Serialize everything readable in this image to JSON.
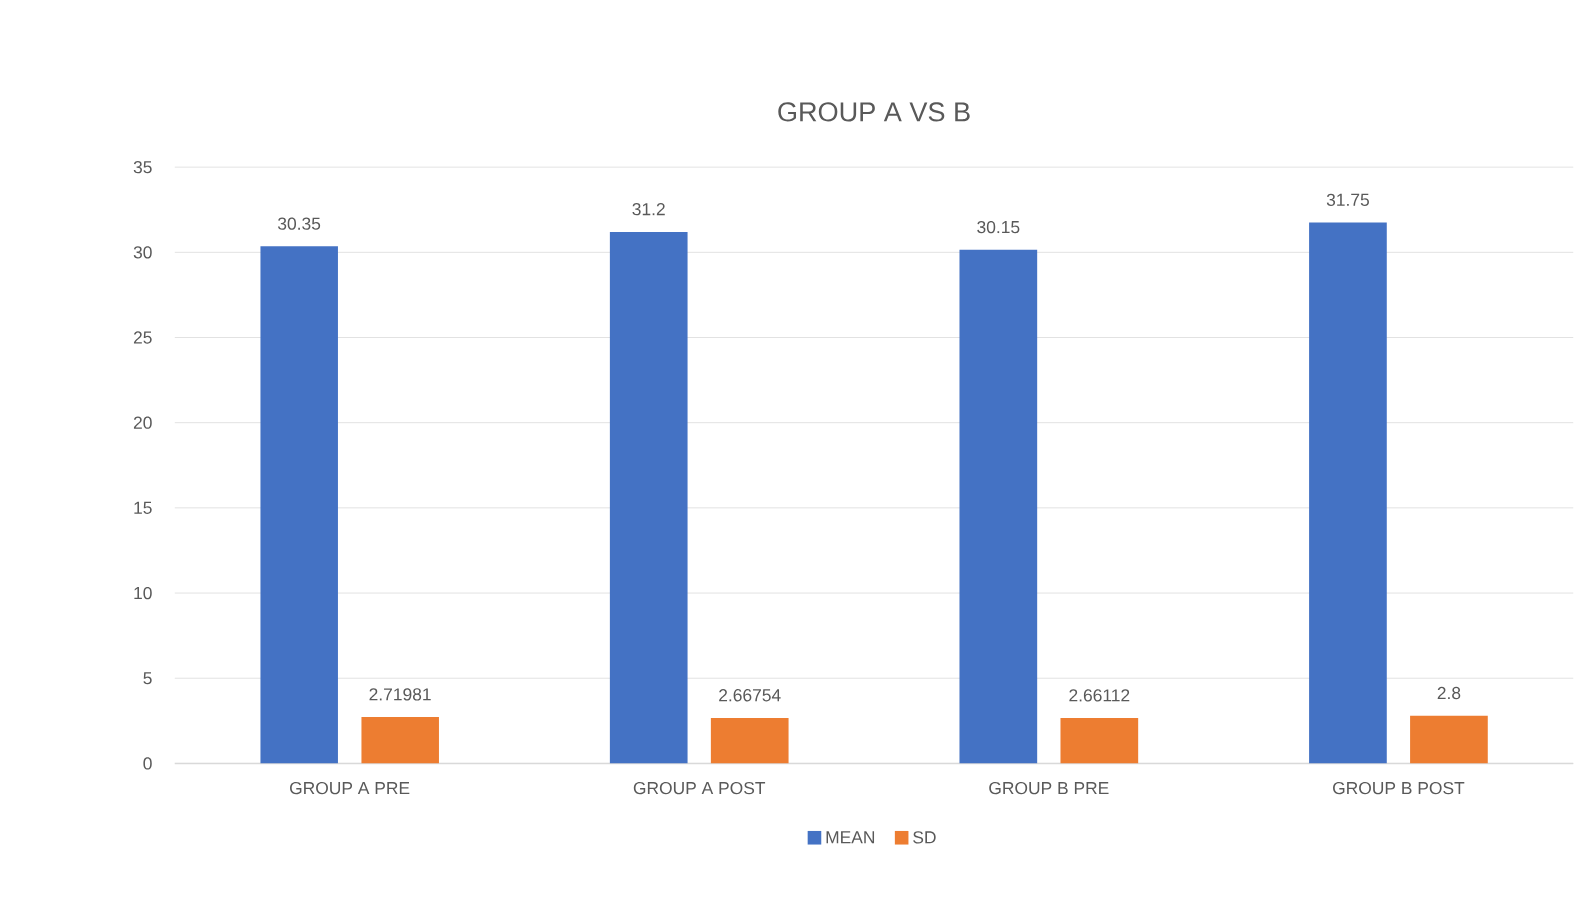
{
  "chart_data": {
    "type": "bar",
    "title": "GROUP A VS B",
    "categories": [
      "GROUP A PRE",
      "GROUP A POST",
      "GROUP B PRE",
      "GROUP B POST"
    ],
    "series": [
      {
        "name": "MEAN",
        "color": "#4472c4",
        "values": [
          30.35,
          31.2,
          30.15,
          31.75
        ]
      },
      {
        "name": "SD",
        "color": "#ed7d31",
        "values": [
          2.71981,
          2.66754,
          2.66112,
          2.8
        ]
      }
    ],
    "ylim": [
      0,
      35
    ],
    "yticks": [
      0,
      5,
      10,
      15,
      20,
      25,
      30,
      35
    ],
    "grid": "y",
    "legend": "bottom",
    "data_labels": true
  }
}
